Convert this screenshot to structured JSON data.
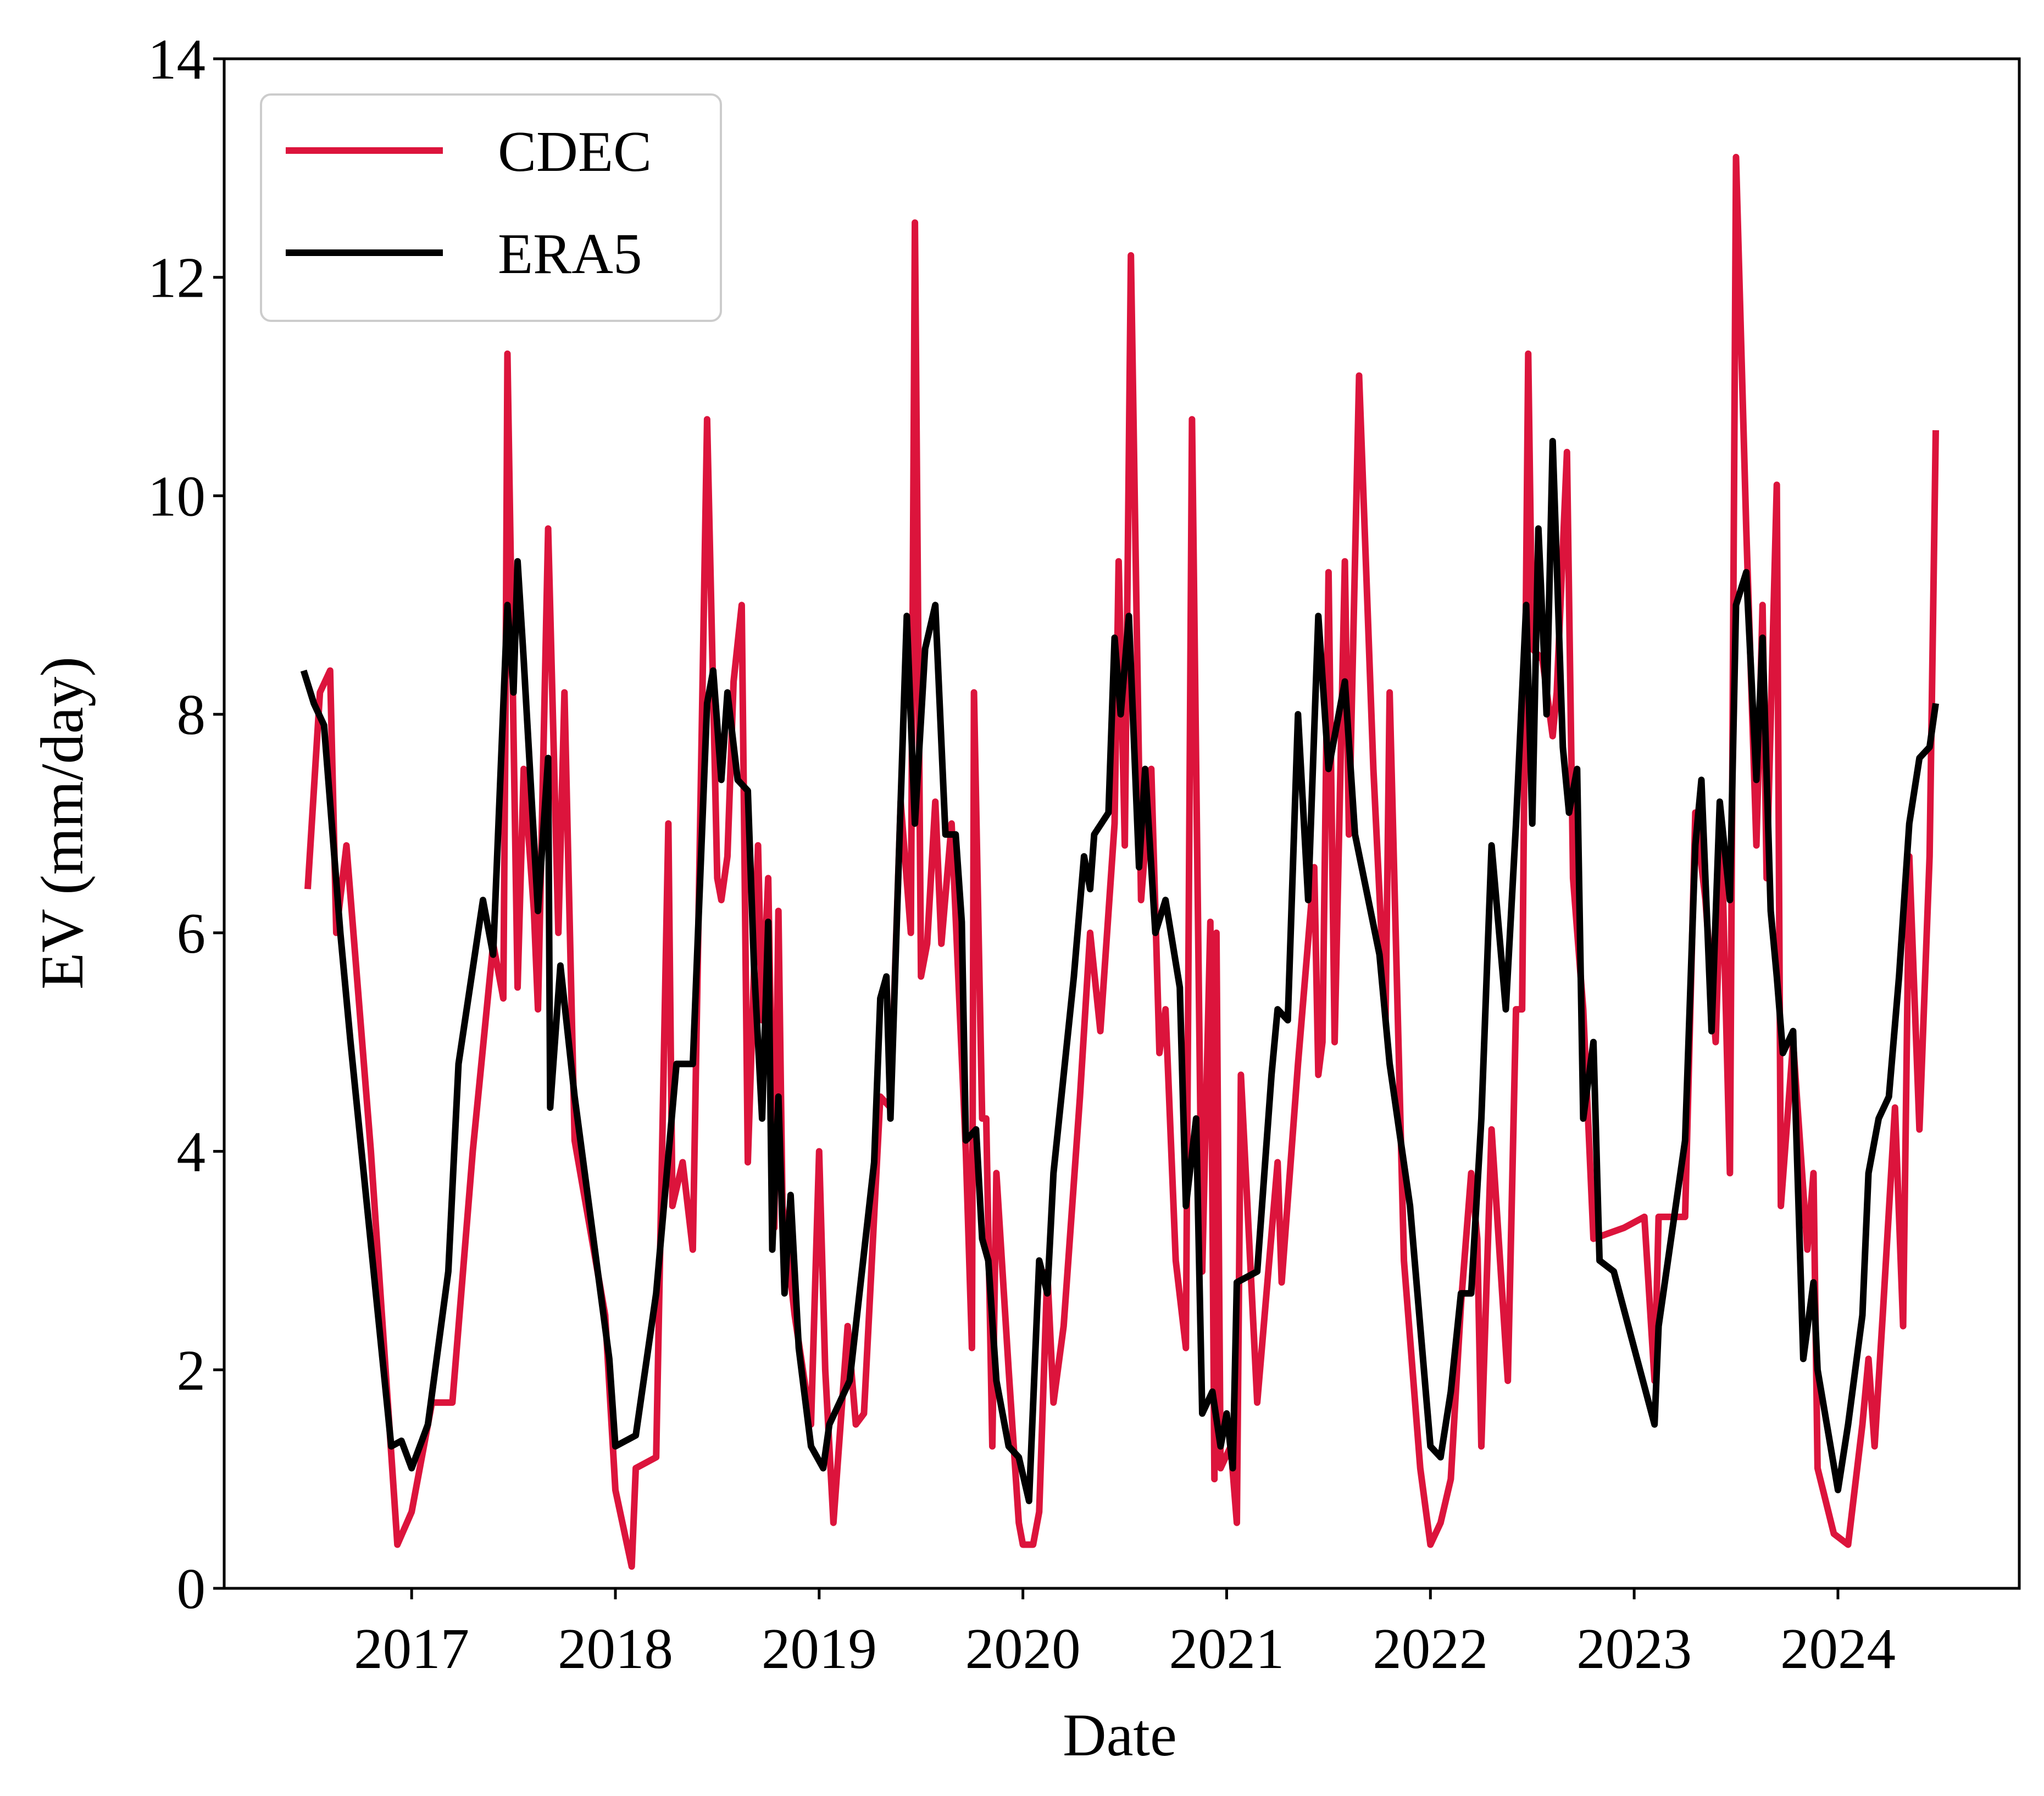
{
  "chart_data": {
    "type": "line",
    "xlabel": "Date",
    "ylabel": "EV (mm/day)",
    "xlim": [
      2016.08,
      2024.89
    ],
    "xticks": [
      2017,
      2018,
      2019,
      2020,
      2021,
      2022,
      2023,
      2024
    ],
    "ylim": [
      0,
      14
    ],
    "yticks": [
      0,
      2,
      4,
      6,
      8,
      10,
      12,
      14
    ],
    "legend": "upper left",
    "series": [
      {
        "name": "CDEC",
        "color": "#dc143c",
        "x": [
          2016.49,
          2016.55,
          2016.6,
          2016.63,
          2016.68,
          2016.8,
          2016.93,
          2017.0,
          2017.07,
          2017.1,
          2017.2,
          2017.3,
          2017.4,
          2017.45,
          2017.46,
          2017.47,
          2017.52,
          2017.55,
          2017.6,
          2017.62,
          2017.67,
          2017.72,
          2017.75,
          2017.8,
          2017.95,
          2018.0,
          2018.08,
          2018.1,
          2018.2,
          2018.26,
          2018.28,
          2018.33,
          2018.38,
          2018.45,
          2018.5,
          2018.52,
          2018.55,
          2018.58,
          2018.62,
          2018.65,
          2018.7,
          2018.72,
          2018.75,
          2018.78,
          2018.8,
          2018.82,
          2018.88,
          2018.96,
          2019.0,
          2019.03,
          2019.07,
          2019.14,
          2019.18,
          2019.22,
          2019.3,
          2019.35,
          2019.4,
          2019.45,
          2019.47,
          2019.5,
          2019.53,
          2019.57,
          2019.6,
          2019.65,
          2019.72,
          2019.75,
          2019.76,
          2019.8,
          2019.82,
          2019.85,
          2019.87,
          2019.93,
          2019.98,
          2020.0,
          2020.05,
          2020.08,
          2020.12,
          2020.15,
          2020.2,
          2020.28,
          2020.33,
          2020.38,
          2020.45,
          2020.47,
          2020.5,
          2020.53,
          2020.58,
          2020.63,
          2020.67,
          2020.7,
          2020.75,
          2020.8,
          2020.83,
          2020.88,
          2020.92,
          2020.94,
          2020.95,
          2020.97,
          2021.02,
          2021.05,
          2021.07,
          2021.15,
          2021.25,
          2021.27,
          2021.35,
          2021.43,
          2021.45,
          2021.47,
          2021.5,
          2021.53,
          2021.58,
          2021.6,
          2021.65,
          2021.72,
          2021.78,
          2021.8,
          2021.87,
          2021.95,
          2022.0,
          2022.05,
          2022.1,
          2022.15,
          2022.2,
          2022.23,
          2022.25,
          2022.3,
          2022.38,
          2022.42,
          2022.45,
          2022.48,
          2022.5,
          2022.55,
          2022.6,
          2022.62,
          2022.67,
          2022.7,
          2022.75,
          2022.8,
          2022.95,
          2023.05,
          2023.1,
          2023.12,
          2023.25,
          2023.3,
          2023.35,
          2023.4,
          2023.43,
          2023.47,
          2023.5,
          2023.55,
          2023.6,
          2023.63,
          2023.65,
          2023.7,
          2023.72,
          2023.78,
          2023.85,
          2023.88,
          2023.9,
          2023.98,
          2024.05,
          2024.12,
          2024.15,
          2024.18,
          2024.22,
          2024.28,
          2024.32,
          2024.35,
          2024.4,
          2024.45,
          2024.48
        ],
        "values": [
          6.4,
          8.2,
          8.4,
          6.0,
          6.8,
          4.0,
          0.4,
          0.7,
          1.4,
          1.7,
          1.7,
          4.0,
          5.9,
          5.4,
          7.8,
          11.3,
          5.5,
          7.5,
          6.2,
          5.3,
          9.7,
          6.0,
          8.2,
          4.1,
          2.5,
          0.9,
          0.2,
          1.1,
          1.2,
          7.0,
          3.5,
          3.9,
          3.1,
          10.7,
          6.5,
          6.3,
          6.7,
          8.3,
          9.0,
          3.9,
          6.8,
          5.2,
          6.5,
          3.3,
          6.2,
          3.5,
          2.5,
          1.5,
          4.0,
          2.0,
          0.6,
          2.4,
          1.5,
          1.6,
          4.5,
          4.4,
          7.2,
          6.0,
          12.5,
          5.6,
          5.9,
          7.2,
          5.9,
          7.0,
          4.0,
          2.2,
          8.2,
          4.3,
          4.3,
          1.3,
          3.8,
          2.0,
          0.6,
          0.4,
          0.4,
          0.7,
          2.9,
          1.7,
          2.4,
          4.5,
          6.0,
          5.1,
          7.0,
          9.4,
          6.8,
          12.2,
          6.3,
          7.5,
          4.9,
          5.3,
          3.0,
          2.2,
          10.7,
          2.9,
          6.1,
          1.0,
          6.0,
          1.1,
          1.3,
          0.6,
          4.7,
          1.7,
          3.9,
          2.8,
          4.8,
          6.6,
          4.7,
          5.0,
          9.3,
          5.0,
          9.4,
          6.9,
          11.1,
          7.5,
          5.2,
          8.2,
          3.0,
          1.1,
          0.4,
          0.6,
          1.0,
          2.6,
          3.8,
          3.2,
          1.3,
          4.2,
          1.9,
          5.3,
          5.3,
          11.3,
          8.6,
          8.5,
          7.8,
          8.2,
          10.4,
          6.5,
          5.3,
          3.2,
          3.3,
          3.4,
          1.9,
          3.4,
          3.4,
          7.1,
          6.3,
          5.0,
          6.8,
          3.8,
          13.1,
          9.7,
          6.8,
          9.0,
          6.5,
          10.1,
          3.5,
          5.0,
          3.1,
          3.8,
          1.1,
          0.5,
          0.4,
          1.5,
          2.1,
          1.3,
          2.5,
          4.4,
          2.4,
          6.7,
          4.2,
          6.7,
          10.6
        ]
      },
      {
        "name": "ERA5",
        "color": "#000000",
        "x": [
          2016.47,
          2016.52,
          2016.57,
          2016.65,
          2016.7,
          2016.9,
          2016.95,
          2017.0,
          2017.08,
          2017.18,
          2017.23,
          2017.35,
          2017.4,
          2017.47,
          2017.5,
          2017.52,
          2017.55,
          2017.62,
          2017.67,
          2017.68,
          2017.73,
          2017.8,
          2017.97,
          2018.0,
          2018.1,
          2018.2,
          2018.3,
          2018.38,
          2018.45,
          2018.48,
          2018.52,
          2018.55,
          2018.6,
          2018.65,
          2018.68,
          2018.72,
          2018.75,
          2018.77,
          2018.8,
          2018.83,
          2018.86,
          2018.9,
          2018.96,
          2019.02,
          2019.05,
          2019.15,
          2019.27,
          2019.3,
          2019.33,
          2019.35,
          2019.4,
          2019.43,
          2019.47,
          2019.52,
          2019.57,
          2019.62,
          2019.67,
          2019.7,
          2019.72,
          2019.77,
          2019.8,
          2019.83,
          2019.87,
          2019.93,
          2019.98,
          2020.03,
          2020.08,
          2020.12,
          2020.15,
          2020.25,
          2020.3,
          2020.33,
          2020.35,
          2020.42,
          2020.45,
          2020.48,
          2020.52,
          2020.57,
          2020.6,
          2020.65,
          2020.7,
          2020.77,
          2020.8,
          2020.85,
          2020.88,
          2020.93,
          2020.97,
          2021.0,
          2021.03,
          2021.05,
          2021.15,
          2021.22,
          2021.25,
          2021.3,
          2021.35,
          2021.4,
          2021.45,
          2021.5,
          2021.58,
          2021.63,
          2021.75,
          2021.8,
          2021.9,
          2022.0,
          2022.05,
          2022.1,
          2022.15,
          2022.2,
          2022.25,
          2022.3,
          2022.37,
          2022.42,
          2022.47,
          2022.5,
          2022.53,
          2022.57,
          2022.6,
          2022.65,
          2022.68,
          2022.72,
          2022.75,
          2022.8,
          2022.83,
          2022.9,
          2023.0,
          2023.1,
          2023.12,
          2023.25,
          2023.3,
          2023.33,
          2023.38,
          2023.42,
          2023.47,
          2023.5,
          2023.55,
          2023.6,
          2023.63,
          2023.67,
          2023.7,
          2023.73,
          2023.78,
          2023.83,
          2023.88,
          2023.9,
          2024.0,
          2024.05,
          2024.12,
          2024.15,
          2024.2,
          2024.25,
          2024.3,
          2024.35,
          2024.4,
          2024.45,
          2024.48
        ],
        "values": [
          8.4,
          8.1,
          7.9,
          6.0,
          5.0,
          1.3,
          1.35,
          1.1,
          1.5,
          2.9,
          4.8,
          6.3,
          5.8,
          9.0,
          8.2,
          9.4,
          8.5,
          6.2,
          7.6,
          4.4,
          5.7,
          4.5,
          2.1,
          1.3,
          1.4,
          2.7,
          4.8,
          4.8,
          8.1,
          8.4,
          7.4,
          8.2,
          7.4,
          7.3,
          5.7,
          4.3,
          6.1,
          3.1,
          4.5,
          2.7,
          3.6,
          2.2,
          1.3,
          1.1,
          1.5,
          1.9,
          3.9,
          5.4,
          5.6,
          4.3,
          7.2,
          8.9,
          7.0,
          8.6,
          9.0,
          6.9,
          6.9,
          6.1,
          4.1,
          4.2,
          3.2,
          3.0,
          1.9,
          1.3,
          1.2,
          0.8,
          3.0,
          2.7,
          3.8,
          5.6,
          6.7,
          6.4,
          6.9,
          7.1,
          8.7,
          8.0,
          8.9,
          6.6,
          7.5,
          6.0,
          6.3,
          5.5,
          3.5,
          4.3,
          1.6,
          1.8,
          1.3,
          1.6,
          1.1,
          2.8,
          2.9,
          4.7,
          5.3,
          5.2,
          8.0,
          6.3,
          8.9,
          7.5,
          8.3,
          6.9,
          5.8,
          4.8,
          3.5,
          1.3,
          1.2,
          1.8,
          2.7,
          2.7,
          4.3,
          6.8,
          5.3,
          7.0,
          9.0,
          7.0,
          9.7,
          8.0,
          10.5,
          7.7,
          7.1,
          7.5,
          4.3,
          5.0,
          3.0,
          2.9,
          2.2,
          1.5,
          2.4,
          4.1,
          6.8,
          7.4,
          5.1,
          7.2,
          6.3,
          9.0,
          9.3,
          7.4,
          8.7,
          6.2,
          5.6,
          4.9,
          5.1,
          2.1,
          2.8,
          2.0,
          0.9,
          1.5,
          2.5,
          3.8,
          4.3,
          4.5,
          5.6,
          7.0,
          7.6,
          7.7,
          8.1
        ]
      }
    ]
  }
}
